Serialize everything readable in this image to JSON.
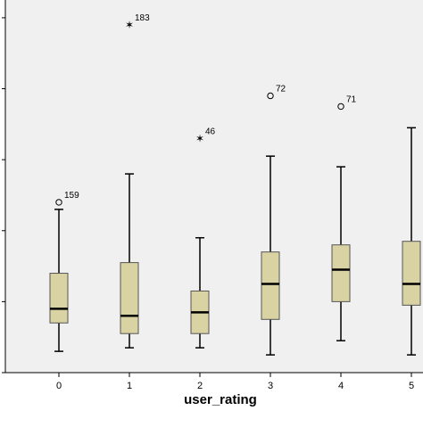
{
  "chart_data": {
    "type": "boxplot",
    "xlabel": "user_rating",
    "categories": [
      "0",
      "1",
      "2",
      "3",
      "4",
      "5"
    ],
    "ylim": [
      0,
      105
    ],
    "y_ticks": [
      0,
      20,
      40,
      60,
      80,
      100
    ],
    "grid": false,
    "colors": {
      "plot_background": "#f0f0f0",
      "box_fill": "#d9d3a4",
      "box_stroke": "#555555",
      "median": "#000000",
      "whisker": "#000000"
    },
    "boxes": [
      {
        "category": "0",
        "min": 6,
        "q1": 14,
        "median": 18,
        "q3": 28,
        "max": 46
      },
      {
        "category": "1",
        "min": 7,
        "q1": 11,
        "median": 16,
        "q3": 31,
        "max": 56
      },
      {
        "category": "2",
        "min": 7,
        "q1": 11,
        "median": 17,
        "q3": 23,
        "max": 38
      },
      {
        "category": "3",
        "min": 5,
        "q1": 15,
        "median": 25,
        "q3": 34,
        "max": 61
      },
      {
        "category": "4",
        "min": 9,
        "q1": 20,
        "median": 29,
        "q3": 36,
        "max": 58
      },
      {
        "category": "5",
        "min": 5,
        "q1": 19,
        "median": 25,
        "q3": 37,
        "max": 69
      }
    ],
    "outliers": [
      {
        "category": "0",
        "value": 48,
        "label": "159",
        "marker": "circle"
      },
      {
        "category": "1",
        "value": 98,
        "label": "183",
        "marker": "star"
      },
      {
        "category": "2",
        "value": 66,
        "label": "46",
        "marker": "star"
      },
      {
        "category": "3",
        "value": 78,
        "label": "72",
        "marker": "circle"
      },
      {
        "category": "4",
        "value": 75,
        "label": "71",
        "marker": "circle"
      }
    ]
  }
}
